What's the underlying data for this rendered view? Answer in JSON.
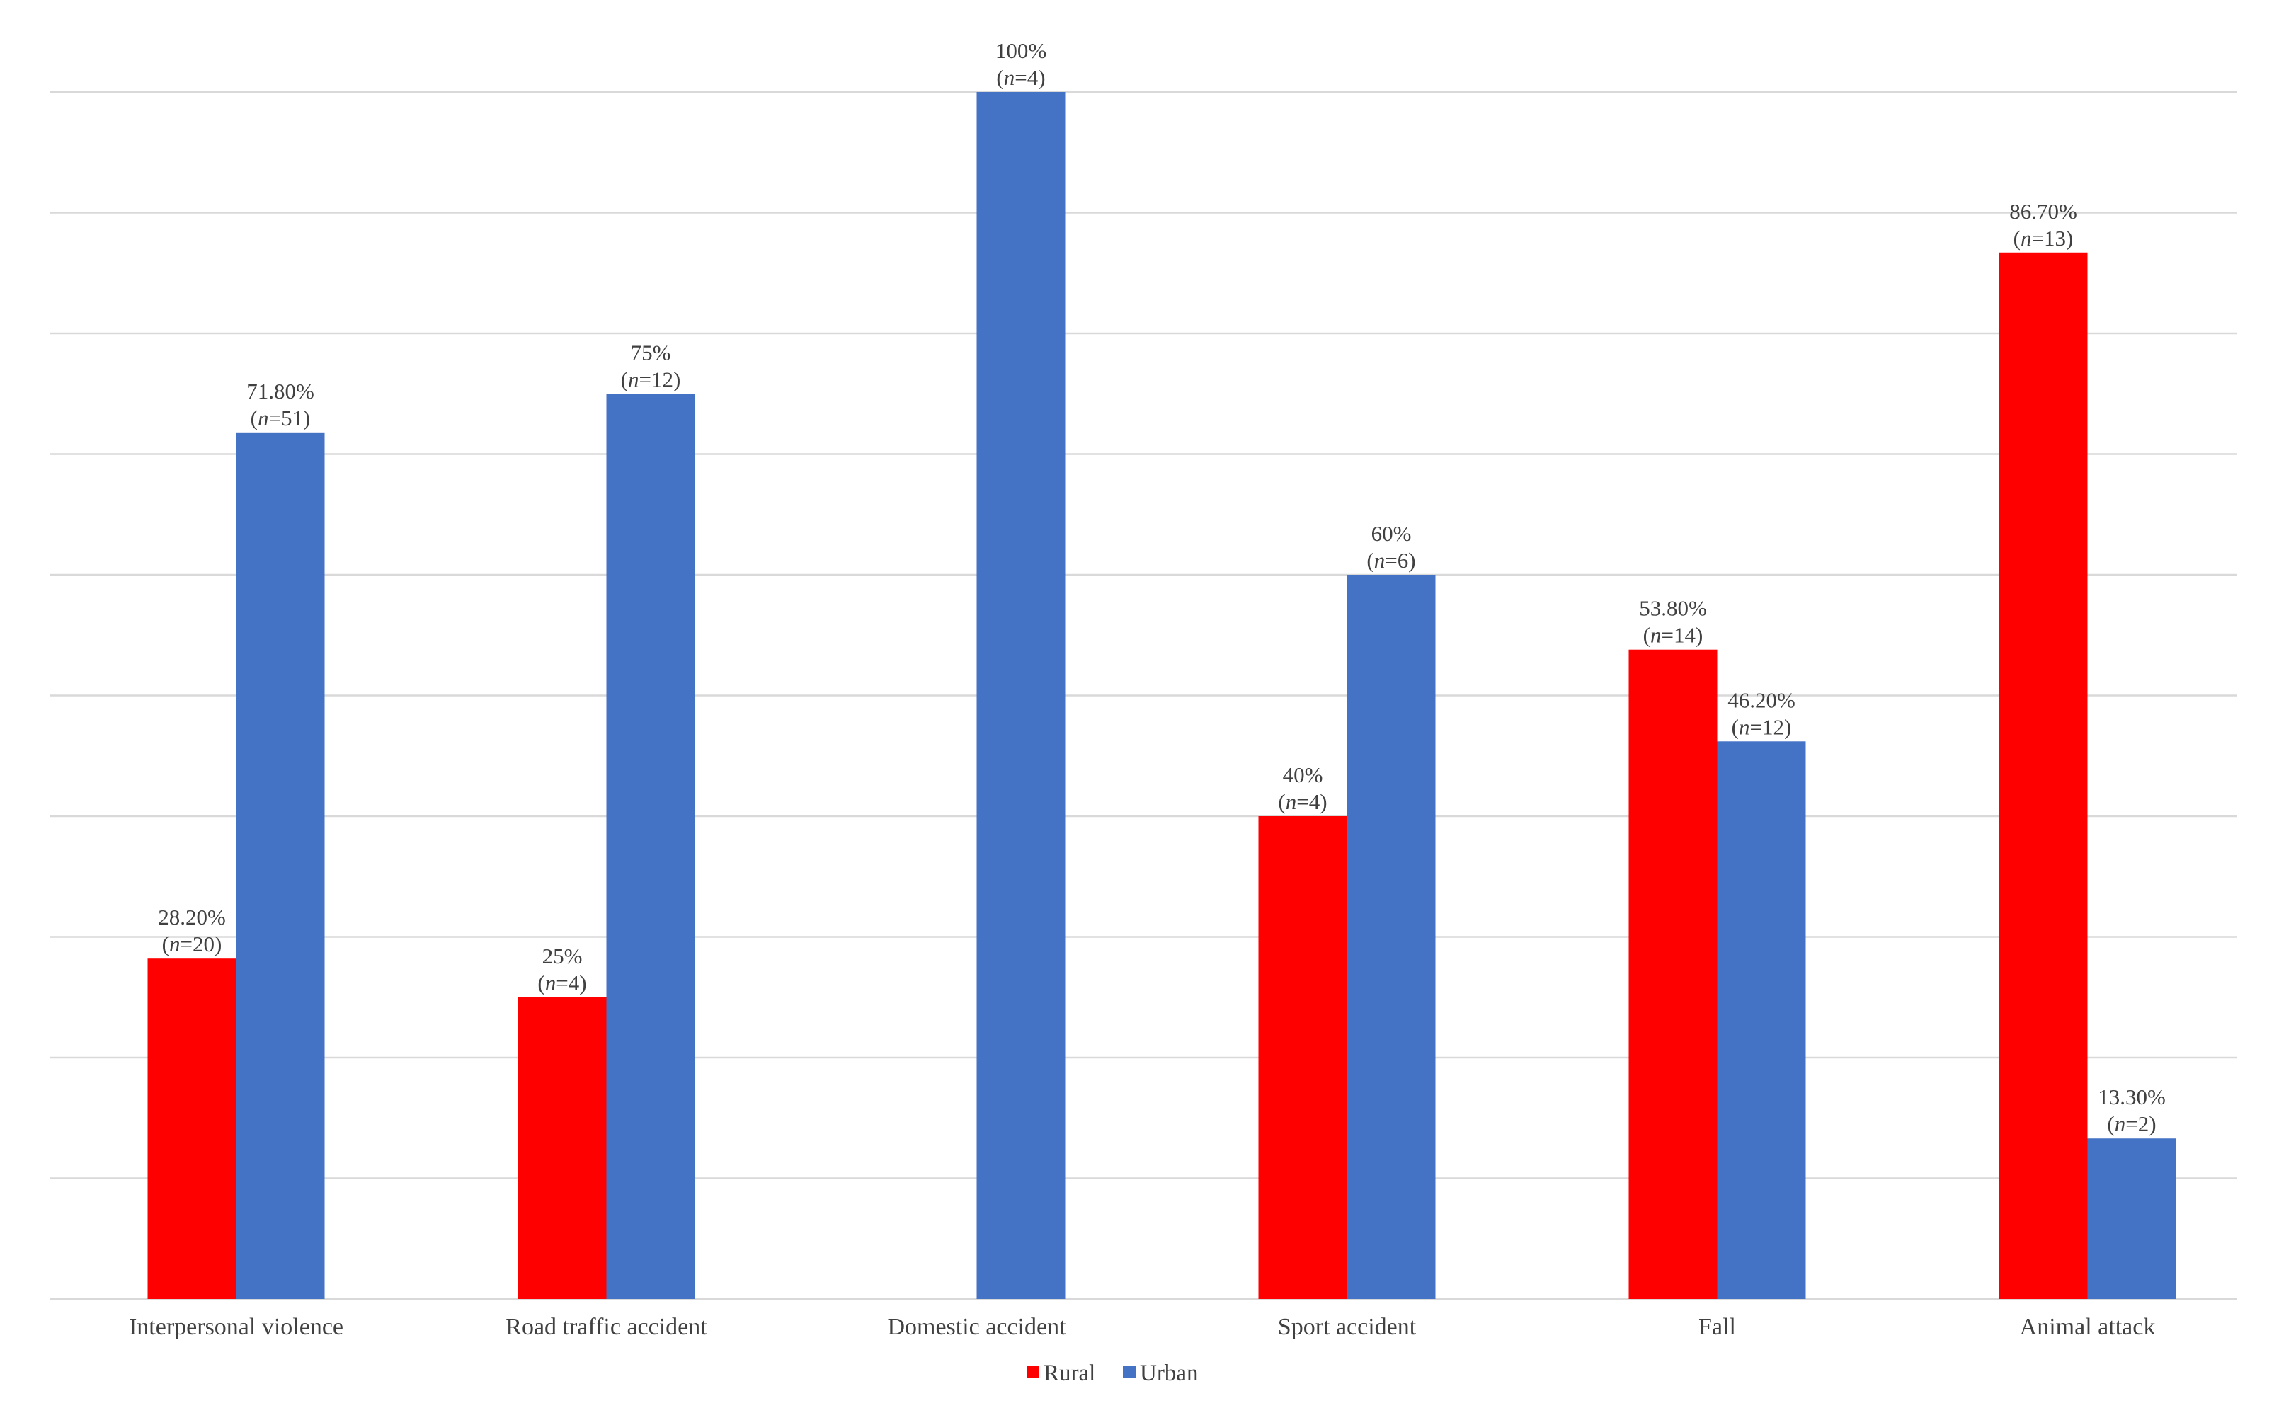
{
  "chart_data": {
    "type": "bar",
    "title": "",
    "xlabel": "",
    "ylabel": "",
    "ylim": [
      0,
      100
    ],
    "grid": true,
    "gridlines": [
      0,
      10,
      20,
      30,
      40,
      50,
      60,
      70,
      80,
      90,
      100
    ],
    "legend_position": "bottom",
    "categories": [
      "Interpersonal violence",
      "Road traffic accident",
      "Domestic accident",
      "Sport accident",
      "Fall",
      "Animal attack"
    ],
    "series": [
      {
        "name": "Rural",
        "color": "#FF0000",
        "values": [
          28.2,
          25,
          0,
          40,
          53.8,
          86.7
        ],
        "pct_labels": [
          "28.20%",
          "25%",
          null,
          "40%",
          "53.80%",
          "86.70%"
        ],
        "n_labels": [
          "20",
          "4",
          null,
          "4",
          "14",
          "13"
        ]
      },
      {
        "name": "Urban",
        "color": "#4472C4",
        "values": [
          71.8,
          75,
          100,
          60,
          46.2,
          13.3
        ],
        "pct_labels": [
          "71.80%",
          "75%",
          "100%",
          "60%",
          "46.20%",
          "13.30%"
        ],
        "n_labels": [
          "51",
          "12",
          "4",
          "6",
          "12",
          "2"
        ]
      }
    ],
    "n_prefix": "n",
    "grid_color": "#D9D9D9"
  }
}
